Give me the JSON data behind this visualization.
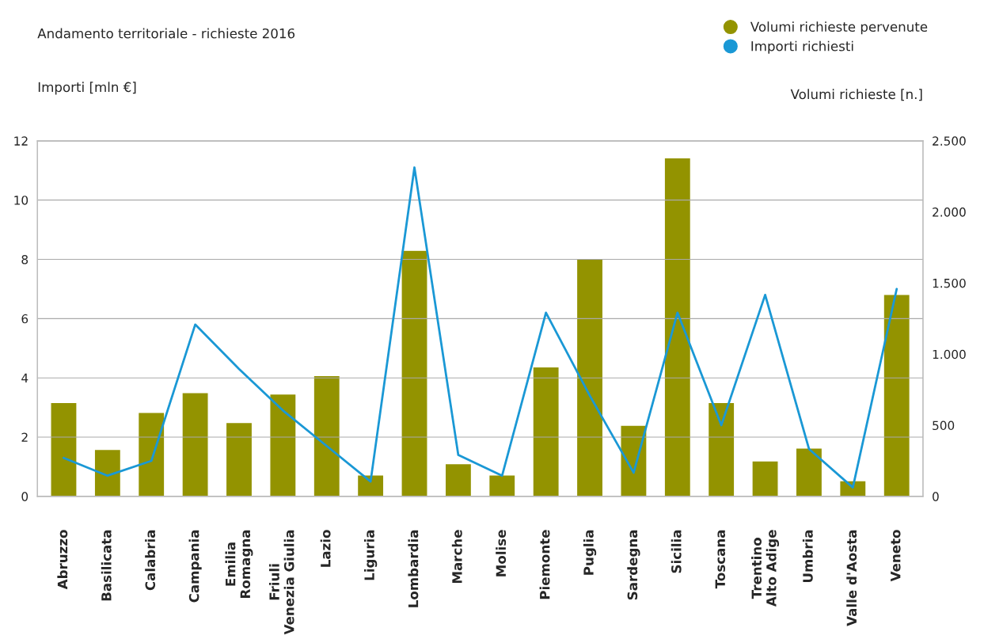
{
  "chart_data": {
    "type": "bar",
    "title": "Andamento territoriale - richieste 2016",
    "ylabel": "Importi [mln €]",
    "y2label": "Volumi richieste [n.]",
    "categories": [
      "Abruzzo",
      "Basilicata",
      "Calabria",
      "Campania",
      "Emilia\nRomagna",
      "Friuli\nVenezia Giulia",
      "Lazio",
      "Liguria",
      "Lombardia",
      "Marche",
      "Molise",
      "Piemonte",
      "Puglia",
      "Sardegna",
      "Sicilia",
      "Toscana",
      "Trentino\nAlto Adige",
      "Umbria",
      "Valle d'Aosta",
      "Veneto"
    ],
    "series": [
      {
        "name": "Volumi richieste pervenute",
        "axis": "y2",
        "color": "#939300",
        "values": [
          660,
          330,
          590,
          730,
          520,
          720,
          850,
          150,
          1730,
          230,
          150,
          910,
          1670,
          500,
          2380,
          660,
          250,
          340,
          110,
          1420
        ]
      },
      {
        "name": "Importi richiesti",
        "type": "line",
        "axis": "y",
        "color": "#1a98d5",
        "values": [
          1.3,
          0.7,
          1.2,
          5.8,
          4.3,
          2.9,
          1.7,
          0.5,
          11.1,
          1.4,
          0.7,
          6.2,
          3.4,
          0.8,
          6.2,
          2.4,
          6.8,
          1.6,
          0.3,
          7.0
        ]
      }
    ],
    "ylim": [
      0,
      12
    ],
    "yticks": [
      0,
      2,
      4,
      6,
      8,
      10,
      12
    ],
    "y2lim": [
      0,
      2500
    ],
    "y2ticks": [
      0,
      500,
      {
        "value": 1000,
        "label": "1.000"
      },
      {
        "value": 1500,
        "label": "1.500"
      },
      {
        "value": 2000,
        "label": "2.000"
      },
      {
        "value": 2500,
        "label": "2.500"
      }
    ],
    "grid": "y",
    "legend": "top right"
  }
}
